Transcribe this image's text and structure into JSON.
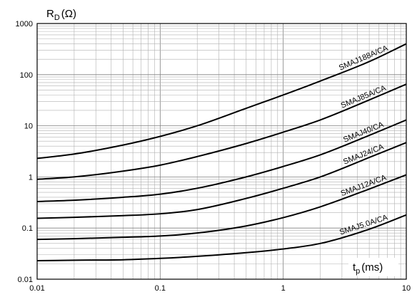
{
  "chart_data": {
    "type": "line",
    "x_scale": "log",
    "y_scale": "log",
    "xlim": [
      0.01,
      10
    ],
    "ylim": [
      0.01,
      1000
    ],
    "grid": true,
    "x_ticks": [
      "0.01",
      "0.1",
      "1",
      "10"
    ],
    "y_ticks": [
      "1000",
      "100",
      "10",
      "1",
      "0.1",
      "0.01"
    ],
    "ylabel": {
      "main": "R",
      "sub": "D",
      "unit": "(Ω)"
    },
    "xlabel": {
      "main": "t",
      "sub": "p",
      "unit": "(ms)"
    },
    "x": [
      0.01,
      0.02,
      0.05,
      0.1,
      0.2,
      0.5,
      1,
      2,
      5,
      10
    ],
    "series": [
      {
        "name": "SMAJ188A/CA",
        "values": [
          2.3,
          2.8,
          4.2,
          6.2,
          10,
          22,
          40,
          75,
          180,
          400
        ]
      },
      {
        "name": "SMAJ85A/CA",
        "values": [
          0.9,
          1.0,
          1.3,
          1.7,
          2.5,
          4.5,
          7.5,
          13,
          32,
          65
        ]
      },
      {
        "name": "SMAJ40/CA",
        "values": [
          0.33,
          0.35,
          0.4,
          0.46,
          0.6,
          1.0,
          1.6,
          2.7,
          6.5,
          13
        ]
      },
      {
        "name": "SMAJ24/CA",
        "values": [
          0.155,
          0.162,
          0.175,
          0.19,
          0.23,
          0.38,
          0.6,
          1.0,
          2.4,
          4.7
        ]
      },
      {
        "name": "SMAJ12A/CA",
        "values": [
          0.06,
          0.062,
          0.066,
          0.07,
          0.08,
          0.11,
          0.16,
          0.26,
          0.58,
          1.1
        ]
      },
      {
        "name": "SMAJ5.0A/CA",
        "values": [
          0.023,
          0.0235,
          0.024,
          0.0255,
          0.028,
          0.033,
          0.039,
          0.05,
          0.095,
          0.18
        ]
      }
    ]
  }
}
